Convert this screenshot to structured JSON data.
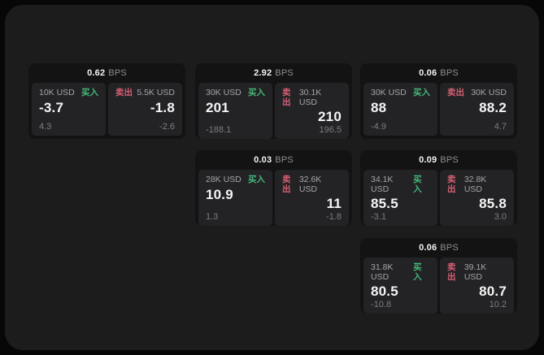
{
  "window": {
    "title": "quote-grid"
  },
  "colors": {
    "window_bg": "#1c1c1d",
    "card_bg": "#131314",
    "panel_bg": "#232326",
    "buy_green": "#45b878",
    "sell_red": "#d75f72",
    "value_white": "#f5f5f6",
    "amount_gray": "#a5a5aa",
    "delta_gray": "#7d7d82",
    "unit_gray": "#8e8e93"
  },
  "labels": {
    "bps_unit": "BPS",
    "buy": "买入",
    "sell": "卖出"
  },
  "cards": [
    {
      "bps": "0.62",
      "grid": {
        "col": 1,
        "row": 1
      },
      "buy": {
        "amount": "10K USD",
        "value": "-3.7",
        "delta": "4.3"
      },
      "sell": {
        "amount": "5.5K USD",
        "value": "-1.8",
        "delta": "-2.6"
      }
    },
    {
      "bps": "2.92",
      "grid": {
        "col": 2,
        "row": 1
      },
      "buy": {
        "amount": "30K USD",
        "value": "201",
        "delta": "-188.1"
      },
      "sell": {
        "amount": "30.1K USD",
        "value": "210",
        "delta": "196.5"
      }
    },
    {
      "bps": "0.06",
      "grid": {
        "col": 3,
        "row": 1
      },
      "buy": {
        "amount": "30K USD",
        "value": "88",
        "delta": "-4.9"
      },
      "sell": {
        "amount": "30K USD",
        "value": "88.2",
        "delta": "4.7"
      }
    },
    {
      "bps": "0.03",
      "grid": {
        "col": 2,
        "row": 2
      },
      "buy": {
        "amount": "28K USD",
        "value": "10.9",
        "delta": "1.3"
      },
      "sell": {
        "amount": "32.6K USD",
        "value": "11",
        "delta": "-1.8"
      }
    },
    {
      "bps": "0.09",
      "grid": {
        "col": 3,
        "row": 2
      },
      "buy": {
        "amount": "34.1K USD",
        "value": "85.5",
        "delta": "-3.1"
      },
      "sell": {
        "amount": "32.8K USD",
        "value": "85.8",
        "delta": "3.0"
      }
    },
    {
      "bps": "0.06",
      "grid": {
        "col": 3,
        "row": 3
      },
      "buy": {
        "amount": "31.8K USD",
        "value": "80.5",
        "delta": "-10.8"
      },
      "sell": {
        "amount": "39.1K USD",
        "value": "80.7",
        "delta": "10.2"
      }
    }
  ]
}
